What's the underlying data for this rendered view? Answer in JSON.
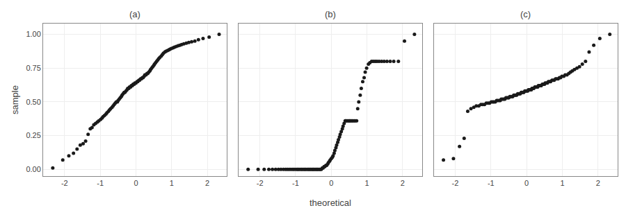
{
  "chart_data": [
    {
      "type": "scatter",
      "title": "(a)",
      "ylabel": "sample",
      "color": "#1a1a1a",
      "grid": true,
      "xlim": [
        -2.6,
        2.55
      ],
      "ylim": [
        -0.05,
        1.08
      ],
      "xticks": [
        -2,
        -1,
        0,
        1,
        2
      ],
      "yticks": [
        {
          "value": 0.0,
          "label": "0.00"
        },
        {
          "value": 0.25,
          "label": "0.25"
        },
        {
          "value": 0.5,
          "label": "0.50"
        },
        {
          "value": 0.75,
          "label": "0.75"
        },
        {
          "value": 1.0,
          "label": "1.00"
        }
      ],
      "x": [
        -2.33,
        -2.05,
        -1.88,
        -1.75,
        -1.65,
        -1.56,
        -1.48,
        -1.41,
        -1.34,
        -1.28,
        -1.23,
        -1.18,
        -1.13,
        -1.08,
        -1.04,
        -0.99,
        -0.95,
        -0.92,
        -0.88,
        -0.84,
        -0.81,
        -0.77,
        -0.74,
        -0.71,
        -0.67,
        -0.64,
        -0.61,
        -0.58,
        -0.55,
        -0.52,
        -0.5,
        -0.47,
        -0.44,
        -0.41,
        -0.39,
        -0.36,
        -0.33,
        -0.31,
        -0.28,
        -0.25,
        -0.23,
        -0.2,
        -0.18,
        -0.15,
        -0.13,
        -0.1,
        -0.08,
        -0.05,
        -0.03,
        0.0,
        0.03,
        0.05,
        0.08,
        0.1,
        0.13,
        0.15,
        0.18,
        0.2,
        0.23,
        0.25,
        0.28,
        0.31,
        0.33,
        0.36,
        0.39,
        0.41,
        0.44,
        0.47,
        0.5,
        0.52,
        0.55,
        0.58,
        0.61,
        0.64,
        0.67,
        0.71,
        0.74,
        0.77,
        0.81,
        0.84,
        0.88,
        0.92,
        0.95,
        0.99,
        1.04,
        1.08,
        1.13,
        1.18,
        1.23,
        1.28,
        1.34,
        1.41,
        1.48,
        1.56,
        1.65,
        1.75,
        1.88,
        2.05,
        2.33
      ],
      "values": [
        0.01,
        0.07,
        0.1,
        0.12,
        0.15,
        0.18,
        0.19,
        0.21,
        0.26,
        0.3,
        0.31,
        0.33,
        0.34,
        0.35,
        0.36,
        0.37,
        0.38,
        0.39,
        0.4,
        0.41,
        0.42,
        0.43,
        0.44,
        0.45,
        0.46,
        0.47,
        0.48,
        0.49,
        0.5,
        0.5,
        0.51,
        0.52,
        0.53,
        0.54,
        0.55,
        0.56,
        0.57,
        0.57,
        0.58,
        0.59,
        0.6,
        0.6,
        0.61,
        0.61,
        0.62,
        0.62,
        0.63,
        0.63,
        0.64,
        0.64,
        0.65,
        0.65,
        0.66,
        0.66,
        0.67,
        0.67,
        0.68,
        0.68,
        0.69,
        0.7,
        0.7,
        0.71,
        0.71,
        0.72,
        0.73,
        0.74,
        0.75,
        0.76,
        0.77,
        0.78,
        0.79,
        0.8,
        0.81,
        0.82,
        0.83,
        0.84,
        0.85,
        0.86,
        0.87,
        0.875,
        0.88,
        0.885,
        0.89,
        0.895,
        0.9,
        0.905,
        0.91,
        0.915,
        0.92,
        0.925,
        0.93,
        0.935,
        0.94,
        0.945,
        0.95,
        0.96,
        0.97,
        0.98,
        1.0
      ]
    },
    {
      "type": "scatter",
      "title": "(b)",
      "xlabel": "theoretical",
      "color": "#1a1a1a",
      "grid": true,
      "tick_labels": "x",
      "xlim": [
        -2.6,
        2.55
      ],
      "ylim": [
        -0.05,
        1.08
      ],
      "xticks": [
        -2,
        -1,
        0,
        1,
        2
      ],
      "yticks": [
        0.0,
        0.25,
        0.5,
        0.75,
        1.0
      ],
      "x": [
        -2.33,
        -2.05,
        -1.88,
        -1.75,
        -1.65,
        -1.56,
        -1.48,
        -1.41,
        -1.34,
        -1.28,
        -1.23,
        -1.18,
        -1.13,
        -1.08,
        -1.04,
        -0.99,
        -0.95,
        -0.92,
        -0.88,
        -0.84,
        -0.81,
        -0.77,
        -0.74,
        -0.71,
        -0.67,
        -0.64,
        -0.61,
        -0.58,
        -0.55,
        -0.52,
        -0.5,
        -0.47,
        -0.44,
        -0.41,
        -0.39,
        -0.36,
        -0.33,
        -0.31,
        -0.28,
        -0.25,
        -0.23,
        -0.2,
        -0.18,
        -0.15,
        -0.13,
        -0.1,
        -0.08,
        -0.05,
        -0.03,
        0.0,
        0.03,
        0.05,
        0.08,
        0.1,
        0.13,
        0.15,
        0.18,
        0.2,
        0.23,
        0.25,
        0.28,
        0.31,
        0.33,
        0.36,
        0.39,
        0.41,
        0.44,
        0.47,
        0.5,
        0.52,
        0.55,
        0.58,
        0.61,
        0.64,
        0.67,
        0.71,
        0.74,
        0.77,
        0.81,
        0.84,
        0.88,
        0.92,
        0.95,
        0.99,
        1.04,
        1.08,
        1.13,
        1.18,
        1.23,
        1.28,
        1.34,
        1.41,
        1.48,
        1.56,
        1.65,
        1.75,
        1.88,
        2.05,
        2.33
      ],
      "values": [
        0.0,
        0.0,
        0.0,
        0.0,
        0.0,
        0.0,
        0.0,
        0.0,
        0.0,
        0.0,
        0.0,
        0.0,
        0.0,
        0.0,
        0.0,
        0.0,
        0.0,
        0.0,
        0.0,
        0.0,
        0.0,
        0.0,
        0.0,
        0.0,
        0.0,
        0.0,
        0.0,
        0.0,
        0.0,
        0.0,
        0.0,
        0.0,
        0.0,
        0.0,
        0.0,
        0.0,
        0.0,
        0.0,
        0.0,
        0.01,
        0.01,
        0.02,
        0.02,
        0.03,
        0.03,
        0.04,
        0.05,
        0.06,
        0.07,
        0.08,
        0.09,
        0.1,
        0.12,
        0.14,
        0.16,
        0.18,
        0.2,
        0.22,
        0.24,
        0.26,
        0.28,
        0.3,
        0.32,
        0.34,
        0.36,
        0.36,
        0.36,
        0.36,
        0.36,
        0.36,
        0.36,
        0.36,
        0.36,
        0.36,
        0.36,
        0.36,
        0.45,
        0.5,
        0.55,
        0.6,
        0.65,
        0.68,
        0.72,
        0.75,
        0.78,
        0.79,
        0.8,
        0.8,
        0.8,
        0.8,
        0.8,
        0.8,
        0.8,
        0.8,
        0.8,
        0.8,
        0.8,
        0.95,
        1.0
      ]
    },
    {
      "type": "scatter",
      "title": "(c)",
      "color": "#1a1a1a",
      "grid": true,
      "tick_labels": "x",
      "xlim": [
        -2.6,
        2.55
      ],
      "ylim": [
        -0.05,
        1.08
      ],
      "xticks": [
        -2,
        -1,
        0,
        1,
        2
      ],
      "yticks": [
        0.0,
        0.25,
        0.5,
        0.75,
        1.0
      ],
      "x": [
        -2.33,
        -2.05,
        -1.88,
        -1.75,
        -1.65,
        -1.56,
        -1.48,
        -1.41,
        -1.34,
        -1.28,
        -1.23,
        -1.18,
        -1.13,
        -1.08,
        -1.04,
        -0.99,
        -0.95,
        -0.92,
        -0.88,
        -0.84,
        -0.81,
        -0.77,
        -0.74,
        -0.71,
        -0.67,
        -0.64,
        -0.61,
        -0.58,
        -0.55,
        -0.52,
        -0.5,
        -0.47,
        -0.44,
        -0.41,
        -0.39,
        -0.36,
        -0.33,
        -0.31,
        -0.28,
        -0.25,
        -0.23,
        -0.2,
        -0.18,
        -0.15,
        -0.13,
        -0.1,
        -0.08,
        -0.05,
        -0.03,
        0.0,
        0.03,
        0.05,
        0.08,
        0.1,
        0.13,
        0.15,
        0.18,
        0.2,
        0.23,
        0.25,
        0.28,
        0.31,
        0.33,
        0.36,
        0.39,
        0.41,
        0.44,
        0.47,
        0.5,
        0.52,
        0.55,
        0.58,
        0.61,
        0.64,
        0.67,
        0.71,
        0.74,
        0.77,
        0.81,
        0.84,
        0.88,
        0.92,
        0.95,
        0.99,
        1.04,
        1.08,
        1.13,
        1.18,
        1.23,
        1.28,
        1.34,
        1.41,
        1.48,
        1.56,
        1.65,
        1.75,
        1.88,
        2.05,
        2.33
      ],
      "values": [
        0.07,
        0.08,
        0.17,
        0.23,
        0.43,
        0.45,
        0.46,
        0.47,
        0.47,
        0.48,
        0.48,
        0.48,
        0.49,
        0.49,
        0.49,
        0.5,
        0.5,
        0.5,
        0.5,
        0.51,
        0.51,
        0.51,
        0.51,
        0.52,
        0.52,
        0.52,
        0.52,
        0.53,
        0.53,
        0.53,
        0.53,
        0.54,
        0.54,
        0.54,
        0.54,
        0.55,
        0.55,
        0.55,
        0.55,
        0.56,
        0.56,
        0.56,
        0.56,
        0.57,
        0.57,
        0.57,
        0.57,
        0.58,
        0.58,
        0.58,
        0.58,
        0.59,
        0.59,
        0.59,
        0.59,
        0.6,
        0.6,
        0.6,
        0.61,
        0.61,
        0.61,
        0.61,
        0.62,
        0.62,
        0.62,
        0.62,
        0.63,
        0.63,
        0.63,
        0.64,
        0.64,
        0.64,
        0.65,
        0.65,
        0.65,
        0.66,
        0.66,
        0.66,
        0.67,
        0.67,
        0.67,
        0.68,
        0.68,
        0.69,
        0.69,
        0.7,
        0.7,
        0.71,
        0.72,
        0.73,
        0.74,
        0.75,
        0.76,
        0.78,
        0.8,
        0.87,
        0.92,
        0.97,
        1.0
      ]
    }
  ]
}
